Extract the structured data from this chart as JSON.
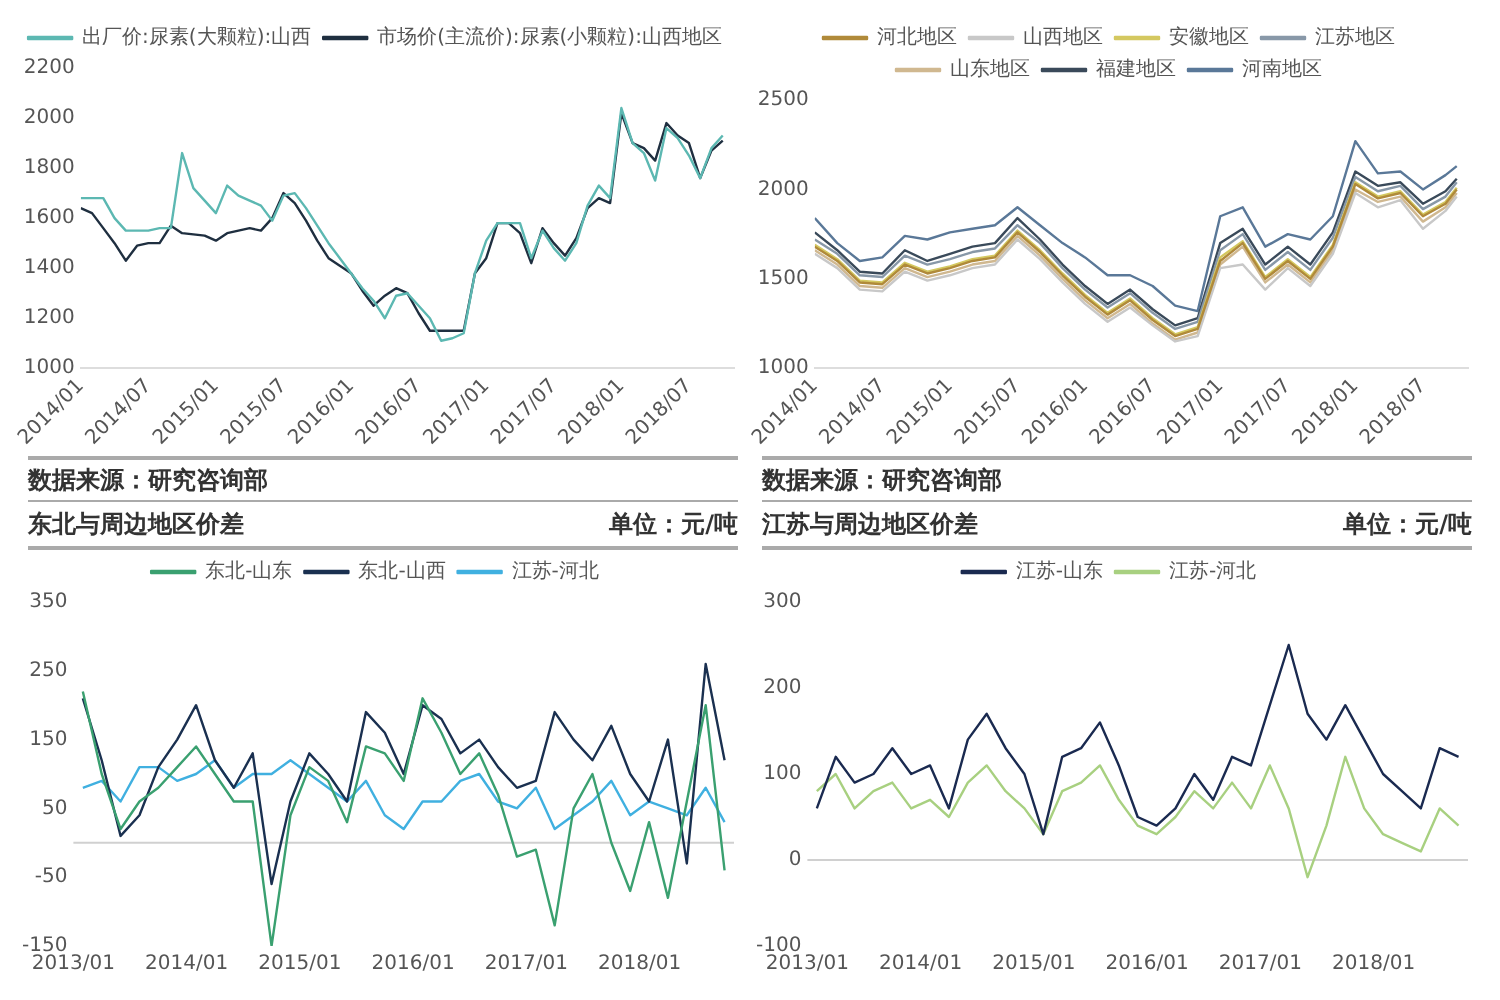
{
  "chart_data": [
    {
      "type": "line",
      "x": [
        "2014-01",
        "2014-02",
        "2014-03",
        "2014-04",
        "2014-05",
        "2014-06",
        "2014-07",
        "2014-08",
        "2014-09",
        "2014-10",
        "2014-11",
        "2014-12",
        "2015-01",
        "2015-02",
        "2015-03",
        "2015-04",
        "2015-05",
        "2015-06",
        "2015-07",
        "2015-08",
        "2015-09",
        "2015-10",
        "2015-11",
        "2015-12",
        "2016-01",
        "2016-02",
        "2016-03",
        "2016-04",
        "2016-05",
        "2016-06",
        "2016-07",
        "2016-08",
        "2016-09",
        "2016-10",
        "2016-11",
        "2016-12",
        "2017-01",
        "2017-02",
        "2017-03",
        "2017-04",
        "2017-05",
        "2017-06",
        "2017-07",
        "2017-08",
        "2017-09",
        "2017-10",
        "2017-11",
        "2017-12",
        "2018-01",
        "2018-02",
        "2018-03",
        "2018-04",
        "2018-05",
        "2018-06",
        "2018-07",
        "2018-08",
        "2018-09",
        "2018-10"
      ],
      "series": [
        {
          "name": "出厂价:尿素(大颗粒):山西",
          "color": "#5cb8b2",
          "values": [
            1680,
            1680,
            1680,
            1600,
            1550,
            1550,
            1550,
            1560,
            1560,
            1860,
            1720,
            1670,
            1620,
            1730,
            1690,
            1670,
            1650,
            1590,
            1690,
            1700,
            1640,
            1570,
            1500,
            1440,
            1380,
            1320,
            1270,
            1200,
            1290,
            1300,
            1250,
            1200,
            1110,
            1120,
            1140,
            1380,
            1510,
            1580,
            1580,
            1580,
            1440,
            1550,
            1480,
            1430,
            1500,
            1650,
            1730,
            1680,
            2040,
            1900,
            1860,
            1750,
            1960,
            1920,
            1850,
            1760,
            1880,
            1930
          ]
        },
        {
          "name": "市场价(主流价):尿素(小颗粒):山西地区",
          "color": "#1f2f40",
          "values": [
            1640,
            1620,
            1560,
            1500,
            1430,
            1490,
            1500,
            1500,
            1570,
            1540,
            1535,
            1530,
            1510,
            1540,
            1550,
            1560,
            1550,
            1600,
            1700,
            1660,
            1590,
            1510,
            1440,
            1410,
            1380,
            1310,
            1250,
            1290,
            1320,
            1300,
            1220,
            1150,
            1150,
            1150,
            1150,
            1380,
            1440,
            1580,
            1580,
            1540,
            1420,
            1560,
            1500,
            1450,
            1520,
            1640,
            1680,
            1660,
            2020,
            1900,
            1880,
            1830,
            1980,
            1930,
            1900,
            1760,
            1870,
            1910
          ]
        }
      ],
      "xlim": [
        "2014-01",
        "2018-11"
      ],
      "xticks": [
        {
          "value": "2014-01",
          "label": "2014/01"
        },
        {
          "value": "2014-07",
          "label": "2014/07"
        },
        {
          "value": "2015-01",
          "label": "2015/01"
        },
        {
          "value": "2015-07",
          "label": "2015/07"
        },
        {
          "value": "2016-01",
          "label": "2016/01"
        },
        {
          "value": "2016-07",
          "label": "2016/07"
        },
        {
          "value": "2017-01",
          "label": "2017/01"
        },
        {
          "value": "2017-07",
          "label": "2017/07"
        },
        {
          "value": "2018-01",
          "label": "2018/01"
        },
        {
          "value": "2018-07",
          "label": "2018/07"
        }
      ],
      "ylim": [
        1000,
        2200
      ],
      "yticks": [
        1000,
        1200,
        1400,
        1600,
        1800,
        2000,
        2200
      ],
      "legend": "top",
      "marker": "none",
      "line_style": "solid",
      "annotations": [
        "数据来源：研究咨询部"
      ]
    },
    {
      "type": "line",
      "x": [
        "2014-01",
        "2014-03",
        "2014-05",
        "2014-07",
        "2014-09",
        "2014-11",
        "2015-01",
        "2015-03",
        "2015-05",
        "2015-07",
        "2015-09",
        "2015-11",
        "2016-01",
        "2016-03",
        "2016-05",
        "2016-07",
        "2016-09",
        "2016-11",
        "2017-01",
        "2017-03",
        "2017-05",
        "2017-07",
        "2017-09",
        "2017-11",
        "2018-01",
        "2018-03",
        "2018-05",
        "2018-07",
        "2018-09",
        "2018-10"
      ],
      "series": [
        {
          "name": "河北地区",
          "color": "#b08a3a",
          "values": [
            1680,
            1600,
            1480,
            1470,
            1580,
            1530,
            1560,
            1600,
            1620,
            1760,
            1650,
            1520,
            1400,
            1300,
            1380,
            1270,
            1180,
            1220,
            1600,
            1700,
            1500,
            1600,
            1500,
            1680,
            2030,
            1950,
            1980,
            1850,
            1920,
            2000
          ]
        },
        {
          "name": "山西地区",
          "color": "#c8c8c8",
          "values": [
            1640,
            1560,
            1440,
            1430,
            1540,
            1490,
            1520,
            1560,
            1580,
            1720,
            1610,
            1480,
            1360,
            1260,
            1340,
            1240,
            1150,
            1180,
            1560,
            1580,
            1440,
            1560,
            1460,
            1640,
            1980,
            1900,
            1940,
            1780,
            1880,
            1960
          ]
        },
        {
          "name": "安徽地区",
          "color": "#d4c860",
          "values": [
            1690,
            1610,
            1490,
            1480,
            1590,
            1540,
            1570,
            1610,
            1630,
            1770,
            1660,
            1530,
            1410,
            1310,
            1390,
            1280,
            1190,
            1230,
            1620,
            1710,
            1510,
            1610,
            1510,
            1690,
            2040,
            1960,
            1990,
            1860,
            1930,
            2010
          ]
        },
        {
          "name": "江苏地区",
          "color": "#8898a8",
          "values": [
            1720,
            1640,
            1520,
            1510,
            1630,
            1580,
            1610,
            1650,
            1670,
            1800,
            1700,
            1560,
            1440,
            1340,
            1420,
            1310,
            1220,
            1260,
            1660,
            1750,
            1550,
            1650,
            1550,
            1730,
            2070,
            1990,
            2020,
            1890,
            1960,
            2040
          ]
        },
        {
          "name": "山东地区",
          "color": "#d0b890",
          "values": [
            1660,
            1580,
            1460,
            1450,
            1560,
            1510,
            1540,
            1580,
            1600,
            1740,
            1630,
            1500,
            1380,
            1280,
            1360,
            1250,
            1160,
            1200,
            1580,
            1680,
            1480,
            1580,
            1480,
            1660,
            2000,
            1930,
            1960,
            1820,
            1900,
            1980
          ]
        },
        {
          "name": "福建地区",
          "color": "#3a4a5a",
          "values": [
            1760,
            1660,
            1540,
            1530,
            1660,
            1600,
            1640,
            1680,
            1700,
            1840,
            1720,
            1580,
            1460,
            1360,
            1440,
            1330,
            1240,
            1280,
            1700,
            1780,
            1580,
            1680,
            1580,
            1760,
            2100,
            2020,
            2040,
            1920,
            1990,
            2060
          ]
        },
        {
          "name": "河南地区",
          "color": "#5a7898",
          "values": [
            1840,
            1700,
            1600,
            1620,
            1740,
            1720,
            1760,
            1780,
            1800,
            1900,
            1800,
            1700,
            1620,
            1520,
            1520,
            1460,
            1350,
            1320,
            1850,
            1900,
            1680,
            1750,
            1720,
            1850,
            2270,
            2090,
            2100,
            2000,
            2080,
            2130
          ]
        }
      ],
      "xlim": [
        "2014-01",
        "2018-11"
      ],
      "xticks": [
        {
          "value": "2014-01",
          "label": "2014/01"
        },
        {
          "value": "2014-07",
          "label": "2014/07"
        },
        {
          "value": "2015-01",
          "label": "2015/01"
        },
        {
          "value": "2015-07",
          "label": "2015/07"
        },
        {
          "value": "2016-01",
          "label": "2016/01"
        },
        {
          "value": "2016-07",
          "label": "2016/07"
        },
        {
          "value": "2017-01",
          "label": "2017/01"
        },
        {
          "value": "2017-07",
          "label": "2017/07"
        },
        {
          "value": "2018-01",
          "label": "2018/01"
        },
        {
          "value": "2018-07",
          "label": "2018/07"
        }
      ],
      "ylim": [
        1000,
        2500
      ],
      "yticks": [
        1000,
        1500,
        2000,
        2500
      ],
      "legend": "top",
      "marker": "none",
      "line_style": "solid",
      "annotations": [
        "数据来源：研究咨询部"
      ]
    },
    {
      "type": "line",
      "title": "东北与周边地区价差",
      "subtitle": "单位：元/吨",
      "x": [
        "2013-02",
        "2013-04",
        "2013-06",
        "2013-08",
        "2013-10",
        "2013-12",
        "2014-02",
        "2014-04",
        "2014-06",
        "2014-08",
        "2014-10",
        "2014-12",
        "2015-02",
        "2015-04",
        "2015-06",
        "2015-08",
        "2015-10",
        "2015-12",
        "2016-02",
        "2016-04",
        "2016-06",
        "2016-08",
        "2016-10",
        "2016-12",
        "2017-02",
        "2017-04",
        "2017-06",
        "2017-08",
        "2017-10",
        "2017-12",
        "2018-02",
        "2018-04",
        "2018-06",
        "2018-08",
        "2018-10"
      ],
      "series": [
        {
          "name": "东北-山东",
          "color": "#3aa070",
          "values": [
            220,
            100,
            20,
            60,
            80,
            110,
            140,
            100,
            60,
            60,
            -150,
            40,
            110,
            90,
            30,
            140,
            130,
            90,
            210,
            160,
            100,
            130,
            70,
            -20,
            -10,
            -120,
            50,
            100,
            0,
            -70,
            30,
            -80,
            60,
            200,
            -40
          ]
        },
        {
          "name": "东北-山西",
          "color": "#1a3050",
          "values": [
            210,
            120,
            10,
            40,
            110,
            150,
            200,
            120,
            80,
            130,
            -60,
            60,
            130,
            100,
            60,
            190,
            160,
            100,
            200,
            180,
            130,
            150,
            110,
            80,
            90,
            190,
            150,
            120,
            170,
            100,
            60,
            150,
            -30,
            260,
            120
          ]
        },
        {
          "name": "江苏-河北",
          "color": "#40b0e0",
          "values": [
            80,
            90,
            60,
            110,
            110,
            90,
            100,
            120,
            80,
            100,
            100,
            120,
            100,
            80,
            60,
            90,
            40,
            20,
            60,
            60,
            90,
            100,
            60,
            50,
            80,
            20,
            40,
            60,
            90,
            40,
            60,
            50,
            40,
            80,
            30
          ]
        }
      ],
      "xlim": [
        "2013-01",
        "2018-11"
      ],
      "xticks": [
        {
          "value": "2013-01",
          "label": "2013/01"
        },
        {
          "value": "2014-01",
          "label": "2014/01"
        },
        {
          "value": "2015-01",
          "label": "2015/01"
        },
        {
          "value": "2016-01",
          "label": "2016/01"
        },
        {
          "value": "2017-01",
          "label": "2017/01"
        },
        {
          "value": "2018-01",
          "label": "2018/01"
        }
      ],
      "ylim": [
        -150,
        350
      ],
      "yticks": [
        -150,
        -50,
        50,
        150,
        250,
        350
      ],
      "legend": "top",
      "marker": "none",
      "line_style": "solid",
      "ref_lines": [
        {
          "axis": "y",
          "value": 0,
          "color": "#d0d0d0"
        }
      ]
    },
    {
      "type": "line",
      "title": "江苏与周边地区价差",
      "subtitle": "单位：元/吨",
      "x": [
        "2013-02",
        "2013-04",
        "2013-06",
        "2013-08",
        "2013-10",
        "2013-12",
        "2014-02",
        "2014-04",
        "2014-06",
        "2014-08",
        "2014-10",
        "2014-12",
        "2015-02",
        "2015-04",
        "2015-06",
        "2015-08",
        "2015-10",
        "2015-12",
        "2016-02",
        "2016-04",
        "2016-06",
        "2016-08",
        "2016-10",
        "2016-12",
        "2017-02",
        "2017-04",
        "2017-06",
        "2017-08",
        "2017-10",
        "2017-12",
        "2018-02",
        "2018-04",
        "2018-06",
        "2018-08",
        "2018-10"
      ],
      "series": [
        {
          "name": "江苏-山东",
          "color": "#1a2a50",
          "values": [
            60,
            120,
            90,
            100,
            130,
            100,
            110,
            60,
            140,
            170,
            130,
            100,
            30,
            120,
            130,
            160,
            110,
            50,
            40,
            60,
            100,
            70,
            120,
            110,
            180,
            250,
            170,
            140,
            180,
            140,
            100,
            80,
            60,
            130,
            120
          ]
        },
        {
          "name": "江苏-河北",
          "color": "#a8d080",
          "values": [
            80,
            100,
            60,
            80,
            90,
            60,
            70,
            50,
            90,
            110,
            80,
            60,
            30,
            80,
            90,
            110,
            70,
            40,
            30,
            50,
            80,
            60,
            90,
            60,
            110,
            60,
            -20,
            40,
            120,
            60,
            30,
            20,
            10,
            60,
            40
          ]
        }
      ],
      "xlim": [
        "2013-01",
        "2018-11"
      ],
      "xticks": [
        {
          "value": "2013-01",
          "label": "2013/01"
        },
        {
          "value": "2014-01",
          "label": "2014/01"
        },
        {
          "value": "2015-01",
          "label": "2015/01"
        },
        {
          "value": "2016-01",
          "label": "2016/01"
        },
        {
          "value": "2017-01",
          "label": "2017/01"
        },
        {
          "value": "2018-01",
          "label": "2018/01"
        }
      ],
      "ylim": [
        -100,
        300
      ],
      "yticks": [
        -100,
        0,
        100,
        200,
        300
      ],
      "legend": "top",
      "marker": "none",
      "line_style": "solid",
      "ref_lines": [
        {
          "axis": "y",
          "value": 0,
          "color": "#d0d0d0"
        }
      ]
    }
  ]
}
